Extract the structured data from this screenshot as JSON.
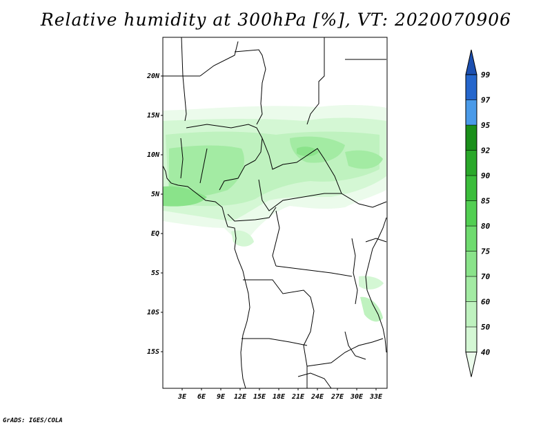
{
  "title": "Relative humidity at 300hPa [%], VT: 2020070906",
  "credit": "GrADS: IGES/COLA",
  "map": {
    "lat_labels": [
      "20N",
      "15N",
      "10N",
      "5N",
      "EQ",
      "5S",
      "10S",
      "15S"
    ],
    "lon_labels": [
      "3E",
      "6E",
      "9E",
      "12E",
      "15E",
      "18E",
      "21E",
      "24E",
      "27E",
      "30E",
      "33E"
    ],
    "lat_range": [
      -20,
      25
    ],
    "lon_range": [
      0,
      35
    ]
  },
  "colorbar": {
    "levels": [
      "40",
      "50",
      "60",
      "70",
      "75",
      "80",
      "85",
      "90",
      "92",
      "95",
      "97",
      "99"
    ],
    "colors": [
      "#ebfbeb",
      "#d4f7d4",
      "#bff2bf",
      "#a3eba3",
      "#8ae38a",
      "#6fdb6f",
      "#52cf52",
      "#3bbd3b",
      "#2aa82a",
      "#1a8f1a",
      "#4a9ae8",
      "#2566cc",
      "#1c4fb0"
    ]
  }
}
